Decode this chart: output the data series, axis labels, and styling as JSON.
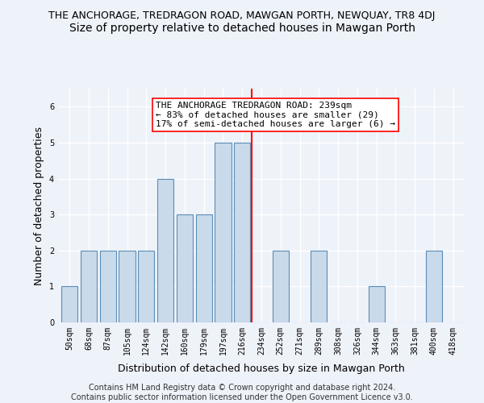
{
  "title1": "THE ANCHORAGE, TREDRAGON ROAD, MAWGAN PORTH, NEWQUAY, TR8 4DJ",
  "title2": "Size of property relative to detached houses in Mawgan Porth",
  "xlabel": "Distribution of detached houses by size in Mawgan Porth",
  "ylabel": "Number of detached properties",
  "footnote": "Contains HM Land Registry data © Crown copyright and database right 2024.\nContains public sector information licensed under the Open Government Licence v3.0.",
  "categories": [
    "50sqm",
    "68sqm",
    "87sqm",
    "105sqm",
    "124sqm",
    "142sqm",
    "160sqm",
    "179sqm",
    "197sqm",
    "216sqm",
    "234sqm",
    "252sqm",
    "271sqm",
    "289sqm",
    "308sqm",
    "326sqm",
    "344sqm",
    "363sqm",
    "381sqm",
    "400sqm",
    "418sqm"
  ],
  "values": [
    1,
    2,
    2,
    2,
    2,
    4,
    3,
    3,
    5,
    5,
    0,
    2,
    0,
    2,
    0,
    0,
    1,
    0,
    0,
    2,
    0
  ],
  "bar_color": "#c9daea",
  "bar_edge_color": "#5b8db8",
  "vline_x": 9.5,
  "vline_color": "red",
  "annotation_text": "THE ANCHORAGE TREDRAGON ROAD: 239sqm\n← 83% of detached houses are smaller (29)\n17% of semi-detached houses are larger (6) →",
  "annotation_box_color": "white",
  "annotation_box_edge_color": "red",
  "ylim": [
    0,
    6.5
  ],
  "yticks": [
    0,
    1,
    2,
    3,
    4,
    5,
    6
  ],
  "background_color": "#eef2f9",
  "grid_color": "white",
  "title1_fontsize": 9,
  "title2_fontsize": 10,
  "xlabel_fontsize": 9,
  "ylabel_fontsize": 9,
  "annotation_fontsize": 8,
  "tick_fontsize": 7,
  "footnote_fontsize": 7
}
